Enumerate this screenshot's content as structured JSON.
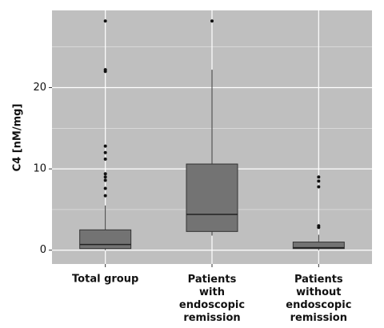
{
  "chart_data": {
    "type": "box",
    "y_label": "C4 [nM/mg]",
    "categories": [
      "Total group",
      "Patients\nwith\nendoscopic\nremission",
      "Patients\nwithout\nendoscopic\nremission"
    ],
    "boxes": [
      {
        "whisker_low": 0,
        "q1": 0.2,
        "median": 0.7,
        "q3": 2.5,
        "whisker_high": 5.5,
        "outliers": [
          6.7,
          7.6,
          8.6,
          9.0,
          9.4,
          11.2,
          12.0,
          12.8,
          22.0,
          22.2,
          28.2
        ]
      },
      {
        "whisker_low": 1.8,
        "q1": 2.3,
        "median": 4.4,
        "q3": 10.6,
        "whisker_high": 22.2,
        "outliers": [
          28.2
        ]
      },
      {
        "whisker_low": 0,
        "q1": 0.2,
        "median": 0.3,
        "q3": 1.0,
        "whisker_high": 1.9,
        "outliers": [
          2.8,
          3.0,
          7.8,
          8.5,
          9.0
        ]
      }
    ],
    "color": "#737373",
    "ylim": [
      -1.7,
      29.5
    ],
    "yticks": [
      0,
      10,
      20
    ],
    "minor_yticks": [
      5,
      15,
      25
    ],
    "grid": true
  }
}
